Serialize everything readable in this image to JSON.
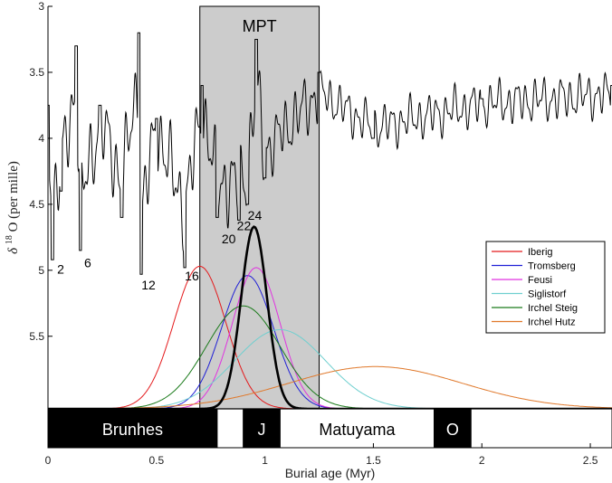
{
  "chart_data": {
    "type": "line",
    "title": "",
    "xlabel": "Burial age (Myr)",
    "ylabel_symbol": "δ",
    "ylabel_sup": "18",
    "ylabel_rest": "O (per mille)",
    "xlim": [
      0,
      2.6
    ],
    "ylim_top": [
      3,
      6.05
    ],
    "x_ticks": [
      0,
      0.5,
      1,
      1.5,
      2,
      2.5
    ],
    "x_tick_labels": [
      "0",
      "0.5",
      "1",
      "1.5",
      "2",
      "2.5"
    ],
    "y_ticks": [
      3,
      3.5,
      4,
      4.5,
      5,
      5.5
    ],
    "y_tick_labels": [
      "3",
      "3.5",
      "4",
      "4.5",
      "5",
      "5.5"
    ],
    "y_reversed": true,
    "mpt": {
      "label": "MPT",
      "x_start": 0.7,
      "x_end": 1.25
    },
    "marine_isotope_stages": [
      {
        "label": "2",
        "x": 0.025,
        "y": 4.93
      },
      {
        "label": "6",
        "x": 0.15,
        "y": 4.88
      },
      {
        "label": "12",
        "x": 0.43,
        "y": 5.05
      },
      {
        "label": "16",
        "x": 0.63,
        "y": 4.98
      },
      {
        "label": "20",
        "x": 0.8,
        "y": 4.7
      },
      {
        "label": "22",
        "x": 0.87,
        "y": 4.6
      },
      {
        "label": "24",
        "x": 0.92,
        "y": 4.52
      }
    ],
    "d18o_series": {
      "name": "",
      "color": "#000000",
      "note": "benthic oxygen-isotope stack, values approximate",
      "key_points": [
        [
          0,
          3.75
        ],
        [
          0.02,
          4.92
        ],
        [
          0.06,
          4.4
        ],
        [
          0.13,
          3.3
        ],
        [
          0.15,
          4.85
        ],
        [
          0.24,
          3.75
        ],
        [
          0.34,
          4.6
        ],
        [
          0.42,
          3.2
        ],
        [
          0.43,
          5.03
        ],
        [
          0.5,
          3.85
        ],
        [
          0.63,
          4.98
        ],
        [
          0.71,
          3.6
        ],
        [
          0.78,
          4.6
        ],
        [
          0.88,
          4.62
        ],
        [
          0.92,
          4.5
        ],
        [
          0.96,
          3.25
        ],
        [
          1.0,
          4.3
        ],
        [
          1.25,
          3.5
        ],
        [
          1.5,
          4.0
        ],
        [
          2.0,
          3.7
        ],
        [
          2.6,
          3.6
        ]
      ]
    },
    "density_series": [
      {
        "name": "Iberig",
        "color": "#e41a1c",
        "peak_x": 0.7,
        "sigma": 0.12,
        "peak_y": 4.97
      },
      {
        "name": "Tromsberg",
        "color": "#1f1fd6",
        "peak_x": 0.92,
        "sigma": 0.12,
        "peak_y": 5.04
      },
      {
        "name": "Feusi",
        "color": "#e033e0",
        "peak_x": 0.96,
        "sigma": 0.11,
        "peak_y": 4.98
      },
      {
        "name": "Siglistorf",
        "color": "#6fcfcf",
        "peak_x": 1.07,
        "sigma": 0.21,
        "peak_y": 5.45
      },
      {
        "name": "Irchel Steig",
        "color": "#1a7a1a",
        "peak_x": 0.9,
        "sigma": 0.17,
        "peak_y": 5.27
      },
      {
        "name": "Irchel Hutz",
        "color": "#e0782a",
        "peak_x": 1.51,
        "sigma": 0.4,
        "peak_y": 5.73
      },
      {
        "name": "",
        "color": "#000000",
        "peak_x": 0.95,
        "sigma": 0.06,
        "peak_y": 4.67,
        "bold": true
      }
    ],
    "chrons": [
      {
        "label": "Brunhes",
        "from": 0,
        "to": 0.78,
        "fill": "#000000",
        "text_color": "#ffffff"
      },
      {
        "label": "J",
        "from": 0.9,
        "to": 1.07,
        "fill": "#000000",
        "text_color": "#ffffff"
      },
      {
        "label": "Matuyama",
        "from": 1.07,
        "to": 1.78,
        "fill": "#ffffff",
        "text_color": "#000000"
      },
      {
        "label": "O",
        "from": 1.78,
        "to": 1.95,
        "fill": "#000000",
        "text_color": "#ffffff"
      }
    ],
    "legend_position": "right"
  }
}
